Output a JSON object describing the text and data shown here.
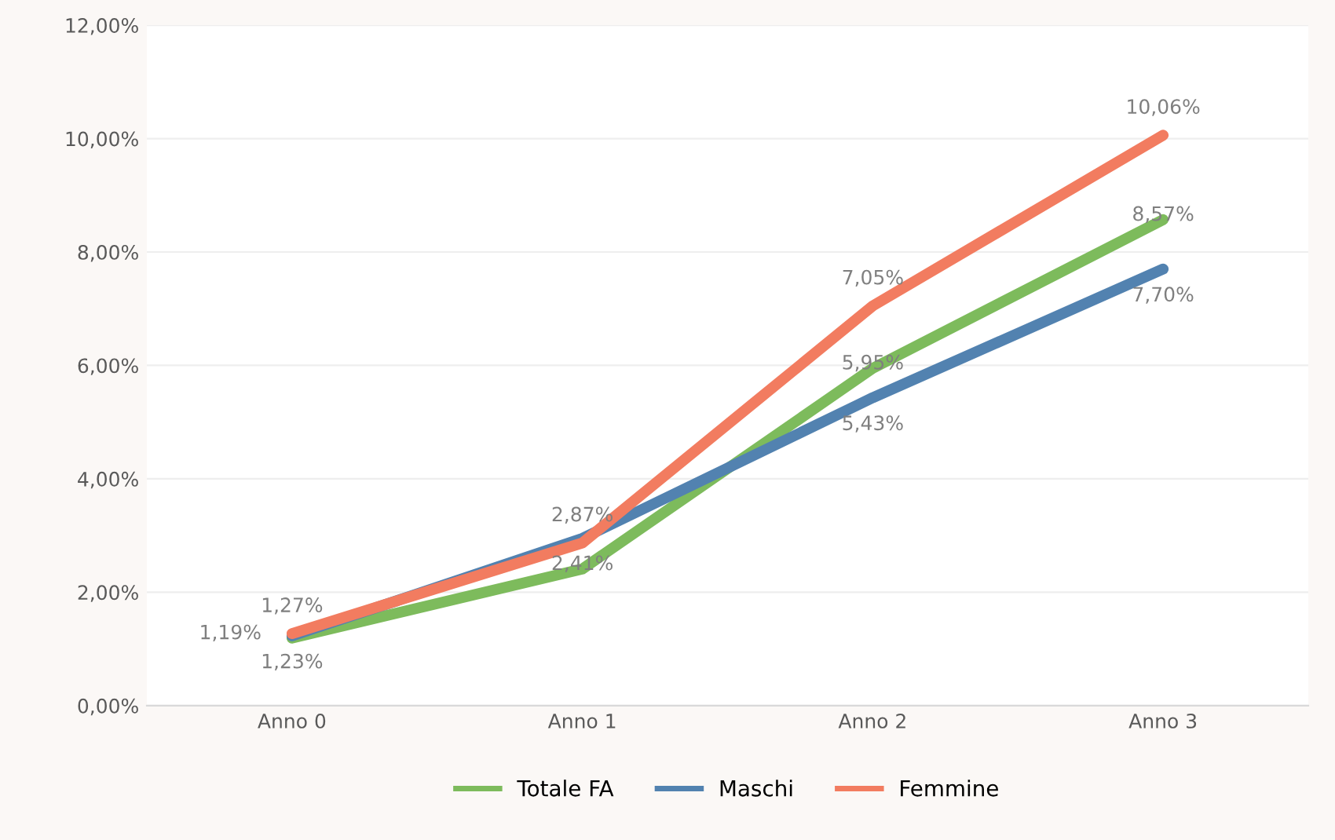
{
  "chart_data": {
    "type": "line",
    "categories": [
      "Anno 0",
      "Anno 1",
      "Anno 2",
      "Anno 3"
    ],
    "series": [
      {
        "name": "Totale FA",
        "color": "#7dbb5c",
        "values": [
          1.19,
          2.41,
          5.95,
          8.57
        ],
        "value_labels": [
          "1,19%",
          "2,41%",
          "5,95%",
          "8,57%"
        ]
      },
      {
        "name": "Maschi",
        "color": "#5282b0",
        "values": [
          1.23,
          2.95,
          5.43,
          7.7
        ],
        "value_labels": [
          "1,23%",
          null,
          "5,43%",
          "7,70%"
        ]
      },
      {
        "name": "Femmine",
        "color": "#f27c60",
        "values": [
          1.27,
          2.87,
          7.05,
          10.06
        ],
        "value_labels": [
          "1,27%",
          "2,87%",
          "7,05%",
          "10,06%"
        ]
      }
    ],
    "ylim": [
      0,
      12
    ],
    "yticks": [
      {
        "value": 0,
        "label": "0,00%"
      },
      {
        "value": 2,
        "label": "2,00%"
      },
      {
        "value": 4,
        "label": "4,00%"
      },
      {
        "value": 6,
        "label": "6,00%"
      },
      {
        "value": 8,
        "label": "8,00%"
      },
      {
        "value": 10,
        "label": "10,00%"
      },
      {
        "value": 12,
        "label": "12,00%"
      }
    ],
    "grid": "y",
    "legend": "bottom",
    "marker": "none",
    "line_style": "solid"
  }
}
